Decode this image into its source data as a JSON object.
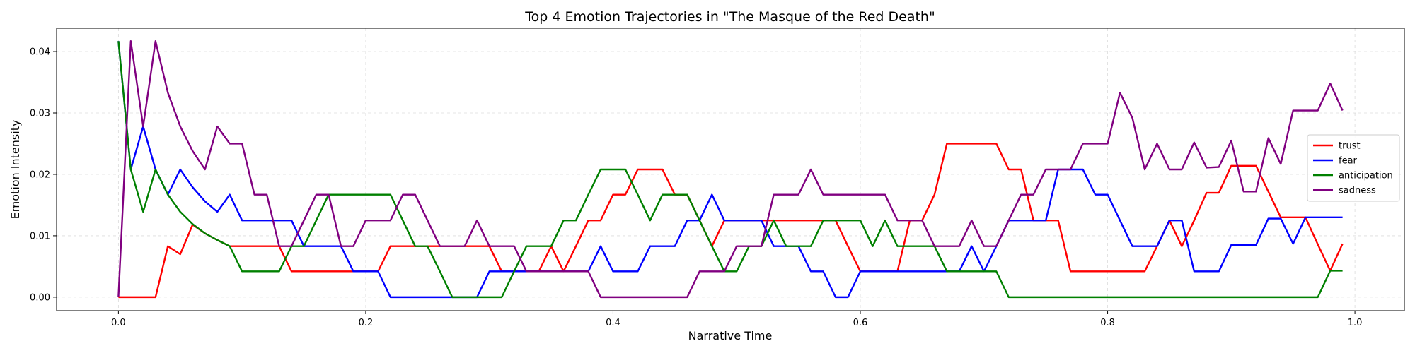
{
  "chart_data": {
    "type": "line",
    "title": "Top 4 Emotion Trajectories in \"The Masque of the Red Death\"",
    "xlabel": "Narrative Time",
    "ylabel": "Emotion Intensity",
    "xlim": [
      -0.05,
      1.04
    ],
    "ylim": [
      -0.0022,
      0.0438
    ],
    "x_ticks": [
      0.0,
      0.2,
      0.4,
      0.6,
      0.8,
      1.0
    ],
    "x_tick_labels": [
      "0.0",
      "0.2",
      "0.4",
      "0.6",
      "0.8",
      "1.0"
    ],
    "y_ticks": [
      0.0,
      0.01,
      0.02,
      0.03,
      0.04
    ],
    "y_tick_labels": [
      "0.00",
      "0.01",
      "0.02",
      "0.03",
      "0.04"
    ],
    "grid": true,
    "legend_position": "right",
    "x": [
      0.0,
      0.01,
      0.02,
      0.03,
      0.04,
      0.05,
      0.06,
      0.07,
      0.08,
      0.09,
      0.1,
      0.11,
      0.12,
      0.13,
      0.14,
      0.15,
      0.16,
      0.17,
      0.18,
      0.19,
      0.2,
      0.21,
      0.22,
      0.23,
      0.24,
      0.25,
      0.26,
      0.27,
      0.28,
      0.29,
      0.3,
      0.31,
      0.32,
      0.33,
      0.34,
      0.35,
      0.36,
      0.37,
      0.38,
      0.39,
      0.4,
      0.41,
      0.42,
      0.43,
      0.44,
      0.45,
      0.46,
      0.47,
      0.48,
      0.49,
      0.5,
      0.51,
      0.52,
      0.53,
      0.54,
      0.55,
      0.56,
      0.57,
      0.58,
      0.59,
      0.6,
      0.61,
      0.62,
      0.63,
      0.64,
      0.65,
      0.66,
      0.67,
      0.68,
      0.69,
      0.7,
      0.71,
      0.72,
      0.73,
      0.74,
      0.75,
      0.76,
      0.77,
      0.78,
      0.79,
      0.8,
      0.81,
      0.82,
      0.83,
      0.84,
      0.85,
      0.86,
      0.87,
      0.88,
      0.89,
      0.9,
      0.91,
      0.92,
      0.93,
      0.94,
      0.95,
      0.96,
      0.97,
      0.98,
      0.99
    ],
    "series": [
      {
        "name": "trust",
        "color": "#ff0000",
        "values": [
          0,
          0,
          0,
          0,
          0.0083,
          0.007,
          0.0118,
          0.0104,
          0.0093,
          0.0083,
          0.0083,
          0.0083,
          0.0083,
          0.0083,
          0.0042,
          0.0042,
          0.0042,
          0.0042,
          0.0042,
          0.0042,
          0.0042,
          0.0042,
          0.0083,
          0.0083,
          0.0083,
          0.0083,
          0.0083,
          0.0083,
          0.0083,
          0.0083,
          0.0083,
          0.0042,
          0.0042,
          0.0042,
          0.0042,
          0.0083,
          0.0042,
          0.0083,
          0.0125,
          0.0125,
          0.0167,
          0.0167,
          0.0208,
          0.0208,
          0.0208,
          0.0167,
          0.0167,
          0.0125,
          0.0083,
          0.0125,
          0.0125,
          0.0125,
          0.0125,
          0.0125,
          0.0125,
          0.0125,
          0.0125,
          0.0125,
          0.0125,
          0.0083,
          0.0042,
          0.0042,
          0.0042,
          0.0042,
          0.0125,
          0.0125,
          0.0167,
          0.025,
          0.025,
          0.025,
          0.025,
          0.025,
          0.0208,
          0.0208,
          0.0125,
          0.0125,
          0.0125,
          0.0042,
          0.0042,
          0.0042,
          0.0042,
          0.0042,
          0.0042,
          0.0042,
          0.0083,
          0.0125,
          0.0083,
          0.0125,
          0.017,
          0.017,
          0.0214,
          0.0214,
          0.0214,
          0.0172,
          0.013,
          0.013,
          0.013,
          0.0086,
          0.0043,
          0.0087
        ]
      },
      {
        "name": "fear",
        "color": "#0000ff",
        "values": [
          0.0417,
          0.0208,
          0.0278,
          0.0208,
          0.0167,
          0.0208,
          0.0179,
          0.0156,
          0.0139,
          0.0167,
          0.0125,
          0.0125,
          0.0125,
          0.0125,
          0.0125,
          0.0083,
          0.0083,
          0.0083,
          0.0083,
          0.0042,
          0.0042,
          0.0042,
          0,
          0,
          0,
          0,
          0,
          0,
          0,
          0,
          0.0042,
          0.0042,
          0.0042,
          0.0042,
          0.0042,
          0.0042,
          0.0042,
          0.0042,
          0.0042,
          0.0083,
          0.0042,
          0.0042,
          0.0042,
          0.0083,
          0.0083,
          0.0083,
          0.0125,
          0.0125,
          0.0167,
          0.0125,
          0.0125,
          0.0125,
          0.0125,
          0.0083,
          0.0083,
          0.0083,
          0.0042,
          0.0042,
          0,
          0,
          0.0042,
          0.0042,
          0.0042,
          0.0042,
          0.0042,
          0.0042,
          0.0042,
          0.0042,
          0.0042,
          0.0083,
          0.0042,
          0.0083,
          0.0125,
          0.0125,
          0.0125,
          0.0125,
          0.0208,
          0.0208,
          0.0208,
          0.0167,
          0.0167,
          0.0125,
          0.0083,
          0.0083,
          0.0083,
          0.0125,
          0.0125,
          0.0042,
          0.0042,
          0.0042,
          0.0085,
          0.0085,
          0.0085,
          0.0128,
          0.0128,
          0.0087,
          0.013,
          0.013,
          0.013,
          0.013
        ]
      },
      {
        "name": "anticipation",
        "color": "#008000",
        "values": [
          0.0417,
          0.0208,
          0.0139,
          0.0208,
          0.0167,
          0.0139,
          0.0119,
          0.0104,
          0.0093,
          0.0083,
          0.0042,
          0.0042,
          0.0042,
          0.0042,
          0.0083,
          0.0083,
          0.0125,
          0.0167,
          0.0167,
          0.0167,
          0.0167,
          0.0167,
          0.0167,
          0.0125,
          0.0083,
          0.0083,
          0.0042,
          0,
          0,
          0,
          0,
          0,
          0.0042,
          0.0083,
          0.0083,
          0.0083,
          0.0125,
          0.0125,
          0.0167,
          0.0208,
          0.0208,
          0.0208,
          0.0167,
          0.0125,
          0.0167,
          0.0167,
          0.0167,
          0.0125,
          0.0083,
          0.0042,
          0.0042,
          0.0083,
          0.0083,
          0.0125,
          0.0083,
          0.0083,
          0.0083,
          0.0125,
          0.0125,
          0.0125,
          0.0125,
          0.0083,
          0.0125,
          0.0083,
          0.0083,
          0.0083,
          0.0083,
          0.0042,
          0.0042,
          0.0042,
          0.0042,
          0.0042,
          0,
          0,
          0,
          0,
          0,
          0,
          0,
          0,
          0,
          0,
          0,
          0,
          0,
          0,
          0,
          0,
          0,
          0,
          0,
          0,
          0,
          0,
          0,
          0,
          0,
          0,
          0.0043,
          0.0043
        ]
      },
      {
        "name": "sadness",
        "color": "#800080",
        "values": [
          0,
          0.0417,
          0.0278,
          0.0417,
          0.0333,
          0.0278,
          0.0238,
          0.0208,
          0.0278,
          0.025,
          0.025,
          0.0167,
          0.0167,
          0.0083,
          0.0083,
          0.0125,
          0.0167,
          0.0167,
          0.0083,
          0.0083,
          0.0125,
          0.0125,
          0.0125,
          0.0167,
          0.0167,
          0.0125,
          0.0083,
          0.0083,
          0.0083,
          0.0125,
          0.0083,
          0.0083,
          0.0083,
          0.0042,
          0.0042,
          0.0042,
          0.0042,
          0.0042,
          0.0042,
          0,
          0,
          0,
          0,
          0,
          0,
          0,
          0,
          0.0042,
          0.0042,
          0.0042,
          0.0083,
          0.0083,
          0.0083,
          0.0167,
          0.0167,
          0.0167,
          0.0208,
          0.0167,
          0.0167,
          0.0167,
          0.0167,
          0.0167,
          0.0167,
          0.0125,
          0.0125,
          0.0125,
          0.0083,
          0.0083,
          0.0083,
          0.0125,
          0.0083,
          0.0083,
          0.0125,
          0.0167,
          0.0167,
          0.0208,
          0.0208,
          0.0208,
          0.025,
          0.025,
          0.025,
          0.0333,
          0.0292,
          0.0208,
          0.025,
          0.0208,
          0.0208,
          0.0252,
          0.0211,
          0.0212,
          0.0255,
          0.0172,
          0.0172,
          0.0259,
          0.0217,
          0.0304,
          0.0304,
          0.0304,
          0.0348,
          0.0304
        ]
      }
    ]
  }
}
